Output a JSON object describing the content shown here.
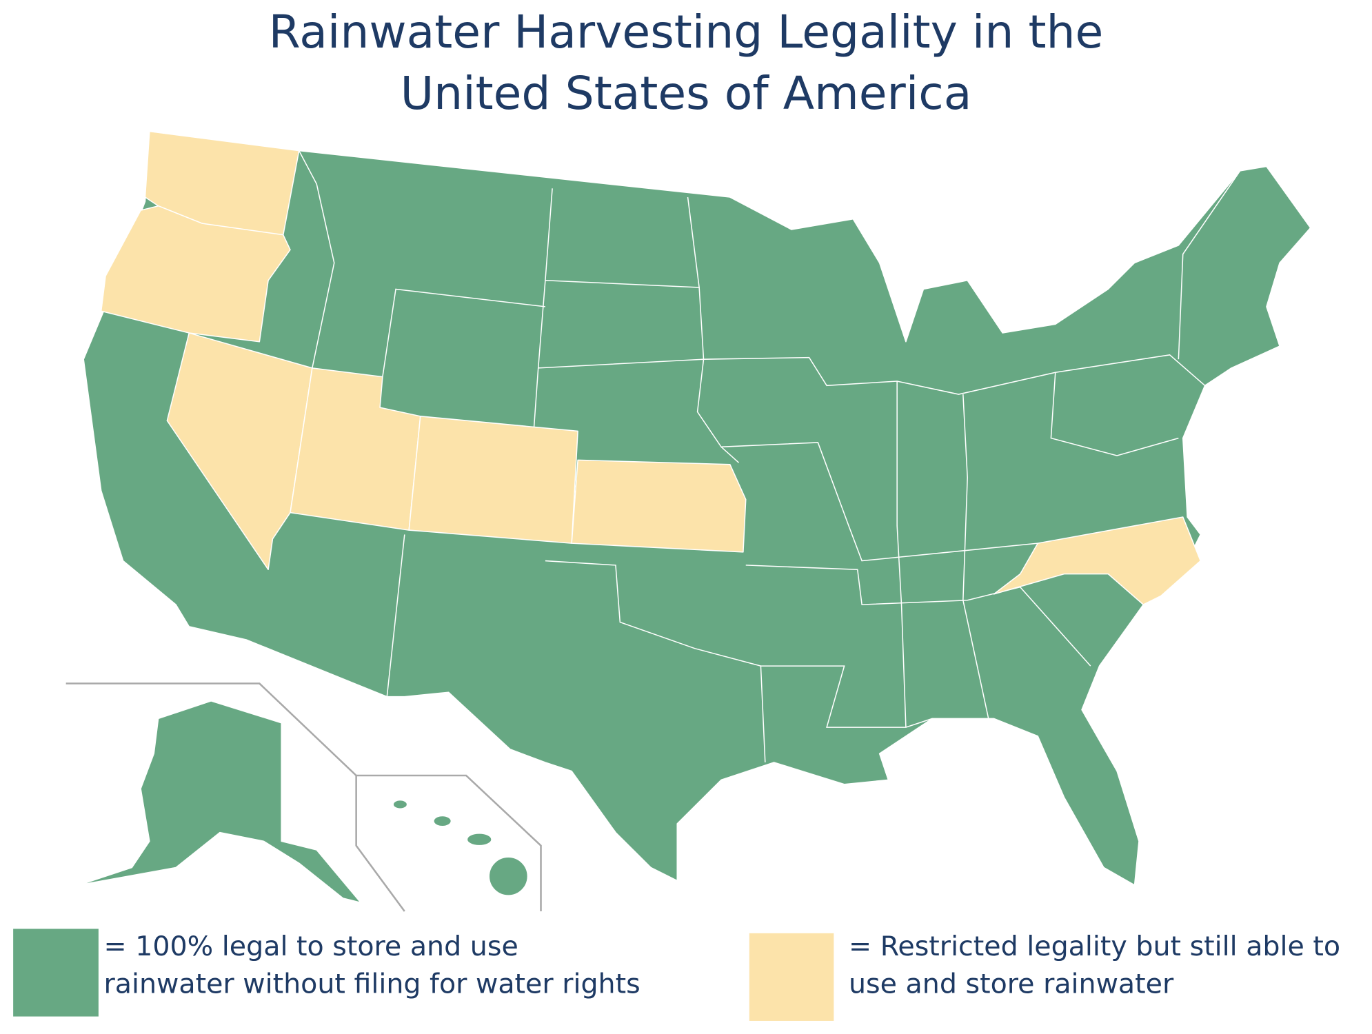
{
  "title_lines": [
    "Rainwater Harvesting Legality in the",
    "United States of America"
  ],
  "title_color": "#1e3a64",
  "legend": [
    {
      "color": "#67a883",
      "lines": [
        "= 100% legal to store and use",
        "rainwater without filing for water rights"
      ]
    },
    {
      "color": "#fce3aa",
      "lines": [
        "= Restricted legality but still able to",
        "use and store rainwater"
      ]
    }
  ]
}
